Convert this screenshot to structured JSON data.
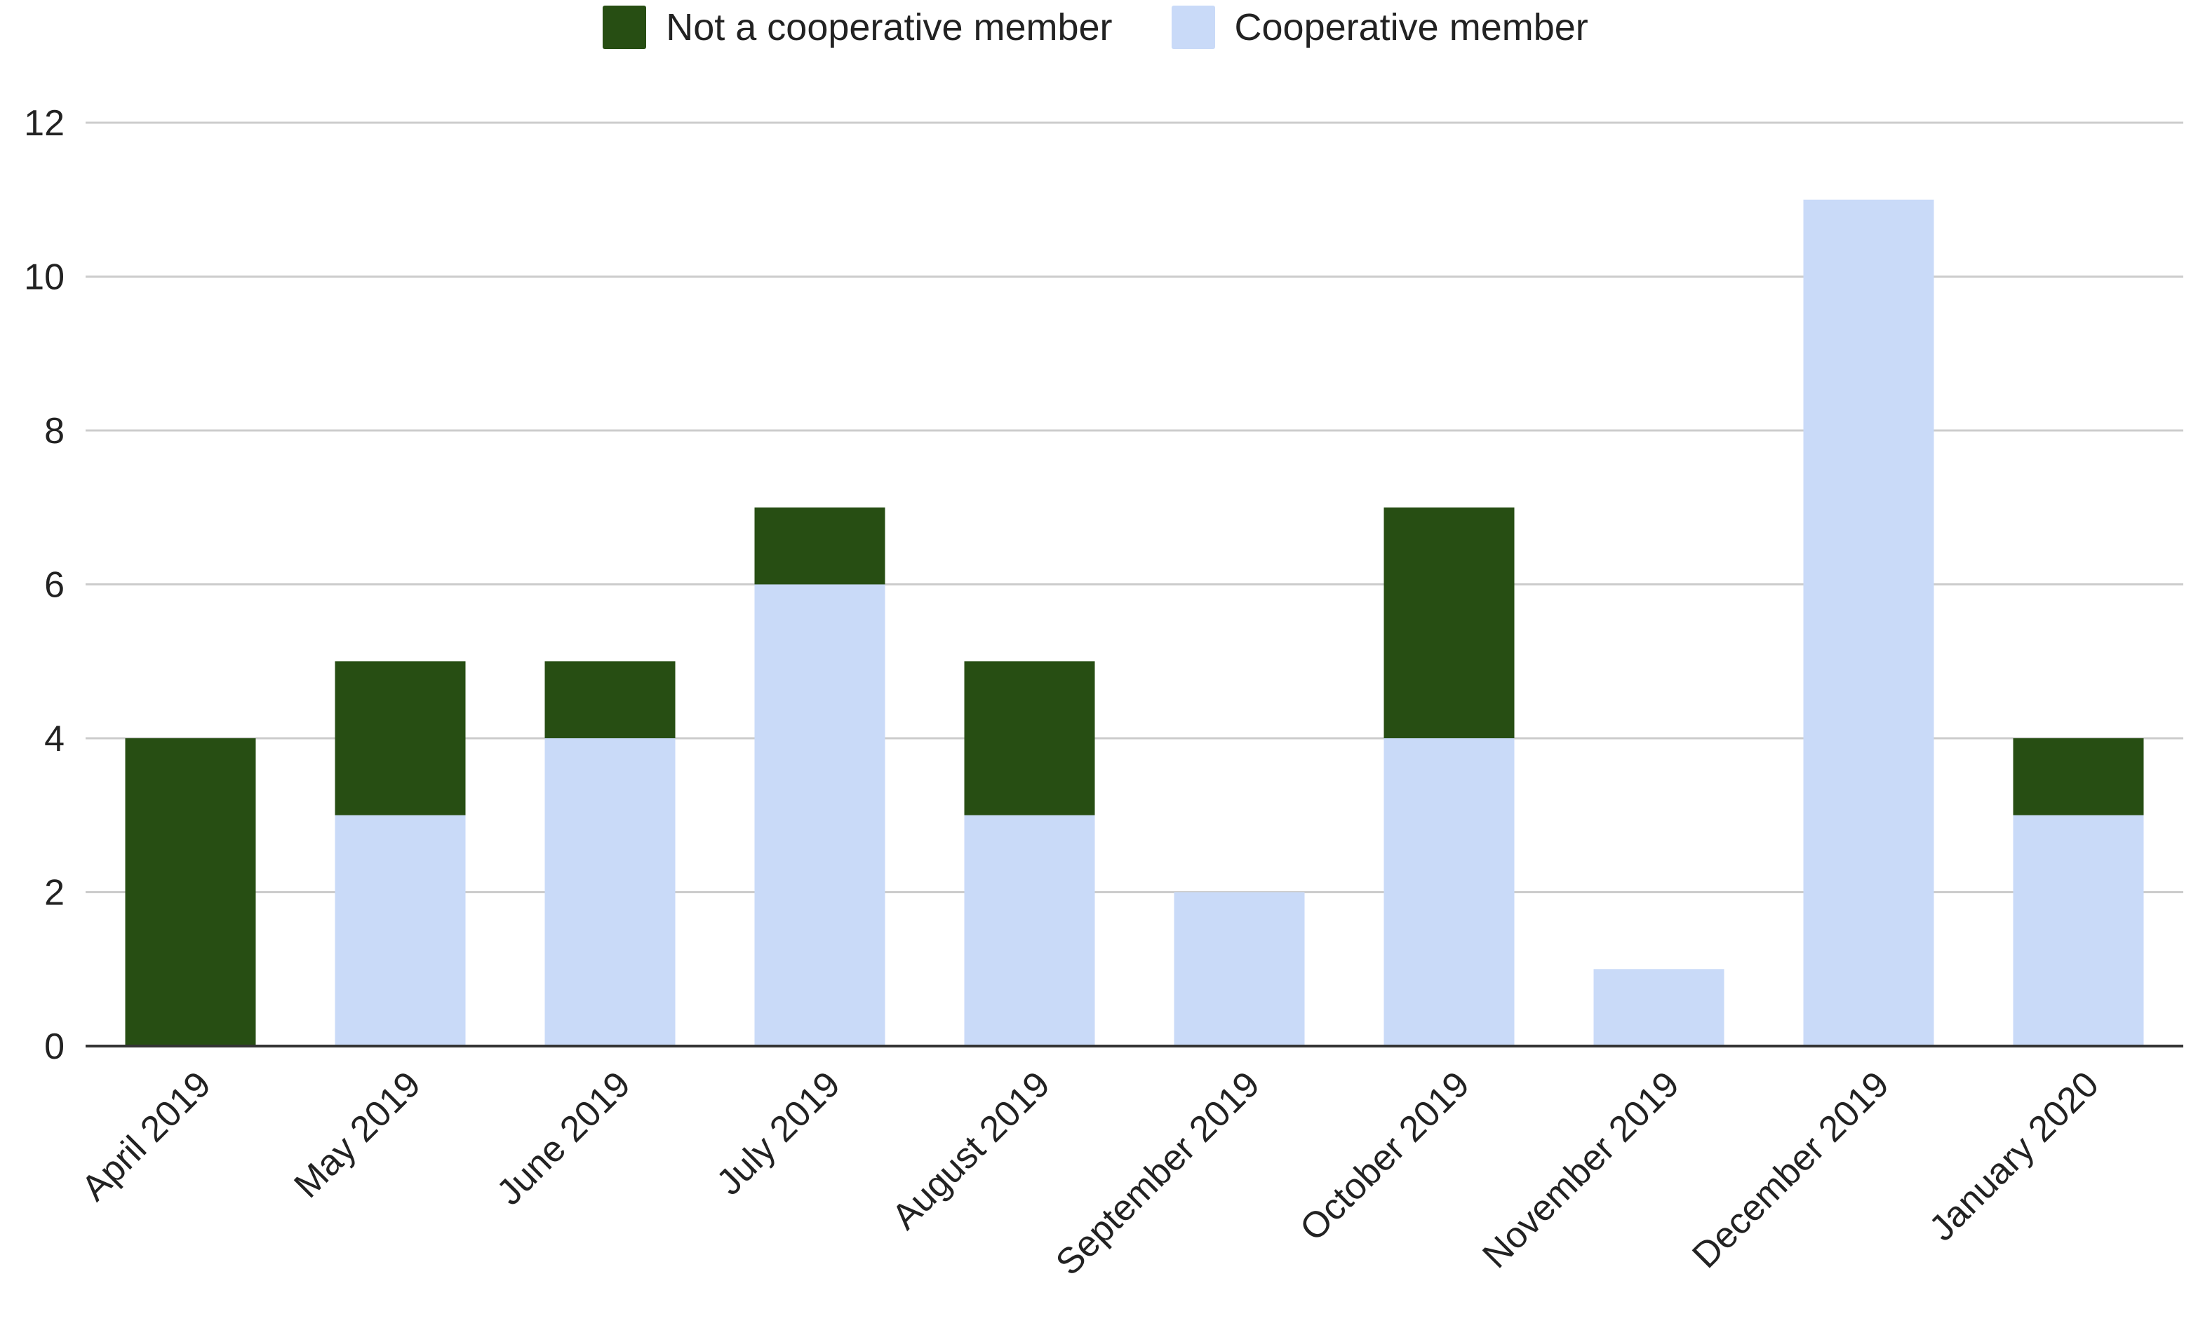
{
  "chart_data": {
    "type": "bar",
    "stacked": true,
    "categories": [
      "April 2019",
      "May 2019",
      "June 2019",
      "July 2019",
      "August 2019",
      "September 2019",
      "October 2019",
      "November 2019",
      "December 2019",
      "January 2020"
    ],
    "series": [
      {
        "name": "Not a cooperative member",
        "color": "#274e13",
        "values": [
          4,
          2,
          1,
          1,
          2,
          0,
          3,
          0,
          0,
          1
        ]
      },
      {
        "name": "Cooperative member",
        "color": "#c9daf8",
        "values": [
          0,
          3,
          4,
          6,
          3,
          2,
          4,
          1,
          11,
          3
        ]
      }
    ],
    "stack_order_bottom_to_top": [
      "Cooperative member",
      "Not a cooperative member"
    ],
    "yticks": [
      0,
      2,
      4,
      6,
      8,
      10,
      12
    ],
    "ylim": [
      0,
      12
    ],
    "title": "",
    "xlabel": "",
    "ylabel": "",
    "grid": true,
    "legend_position": "top"
  }
}
